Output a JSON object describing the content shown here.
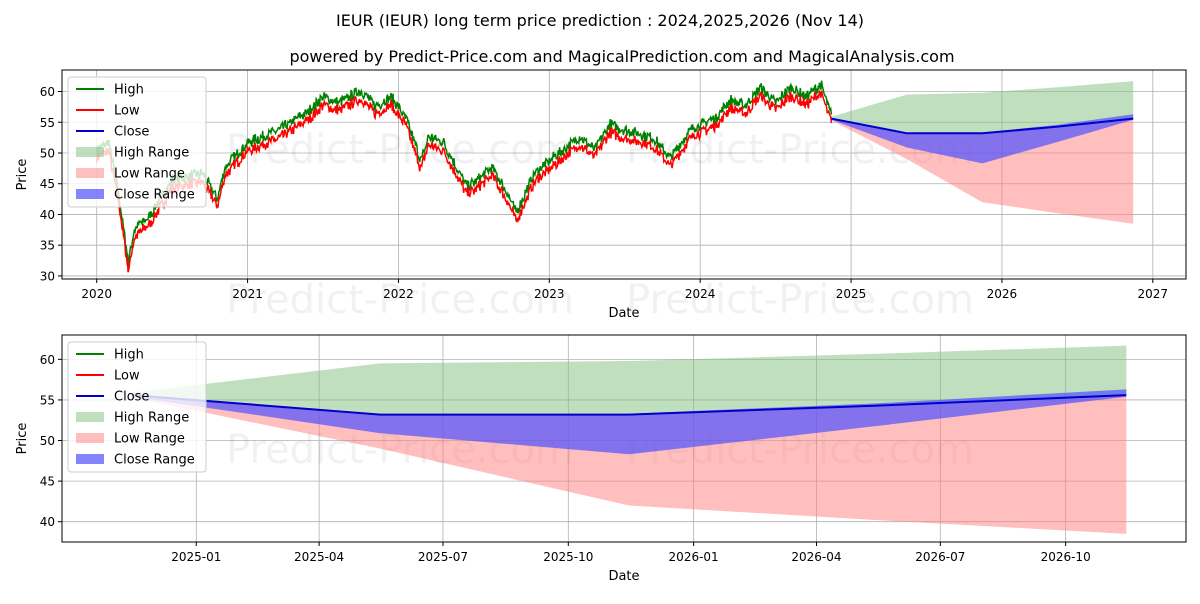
{
  "header": {
    "title": "IEUR (IEUR) long term price prediction : 2024,2025,2026 (Nov 14)",
    "subtitle": "powered by Predict-Price.com and MagicalPrediction.com and MagicalAnalysis.com"
  },
  "watermark": "Predict-Price.com",
  "colors": {
    "high": "#008000",
    "low": "#ff0000",
    "close": "#0000cc",
    "high_range": "#7fbf7f",
    "low_range": "#ff8080",
    "close_range": "#5050ff"
  },
  "chart_data": [
    {
      "type": "line",
      "title": "",
      "xlabel": "Date",
      "ylabel": "Price",
      "xlim": [
        2019.77,
        2027.22
      ],
      "ylim": [
        29.5,
        63.5
      ],
      "xticks": [
        2020,
        2021,
        2022,
        2023,
        2024,
        2025,
        2026,
        2027
      ],
      "xtick_labels": [
        "2020",
        "2021",
        "2022",
        "2023",
        "2024",
        "2025",
        "2026",
        "2027"
      ],
      "yticks": [
        30,
        35,
        40,
        45,
        50,
        55,
        60
      ],
      "grid": true,
      "legend": "upper-left",
      "legend_entries": [
        "High",
        "Low",
        "Close",
        "High Range",
        "Low Range",
        "Close Range"
      ],
      "history": {
        "x": [
          2020.0,
          2020.08,
          2020.15,
          2020.19,
          2020.21,
          2020.25,
          2020.35,
          2020.5,
          2020.7,
          2020.8,
          2020.85,
          2021.0,
          2021.2,
          2021.4,
          2021.5,
          2021.6,
          2021.75,
          2021.85,
          2021.95,
          2022.05,
          2022.15,
          2022.2,
          2022.3,
          2022.45,
          2022.5,
          2022.62,
          2022.72,
          2022.78,
          2022.9,
          2023.05,
          2023.2,
          2023.3,
          2023.4,
          2023.5,
          2023.6,
          2023.7,
          2023.8,
          2023.95,
          2024.1,
          2024.2,
          2024.3,
          2024.4,
          2024.5,
          2024.6,
          2024.7,
          2024.8,
          2024.87
        ],
        "close": [
          50,
          51,
          42,
          35,
          31.5,
          37,
          39,
          45,
          46,
          42,
          47,
          51,
          53,
          56,
          58.5,
          57.5,
          59.5,
          57,
          58.5,
          55,
          48,
          52,
          51,
          44,
          44.5,
          47,
          43,
          39.5,
          46,
          49,
          52,
          50,
          54,
          53,
          52.5,
          51.5,
          48.5,
          53.5,
          55,
          58,
          57,
          60,
          57.5,
          60,
          58.5,
          60.5,
          55.5
        ]
      },
      "forecast": {
        "x": [
          2024.87,
          2025.37,
          2025.87,
          2026.37,
          2026.87
        ],
        "close": [
          55.6,
          53.2,
          53.2,
          54.3,
          55.6
        ],
        "high_upper": [
          55.9,
          59.5,
          59.8,
          60.7,
          61.7
        ],
        "close_upper": [
          55.7,
          53.2,
          53.3,
          54.6,
          56.3
        ],
        "close_lower": [
          55.4,
          50.9,
          48.3,
          51.8,
          55.4
        ],
        "low_lower": [
          55.3,
          49.0,
          42.0,
          40.2,
          38.5
        ]
      }
    },
    {
      "type": "line",
      "title": "",
      "xlabel": "Date",
      "ylabel": "Price",
      "xlim": [
        2024.73,
        2026.99
      ],
      "ylim": [
        37.5,
        63.0
      ],
      "xticks": [
        2025.0,
        2025.247,
        2025.496,
        2025.748,
        2026.0,
        2026.247,
        2026.496,
        2026.748
      ],
      "xtick_labels": [
        "2025-01",
        "2025-04",
        "2025-07",
        "2025-10",
        "2026-01",
        "2026-04",
        "2026-07",
        "2026-10"
      ],
      "yticks": [
        40,
        45,
        50,
        55,
        60
      ],
      "grid": true,
      "legend": "upper-left",
      "legend_entries": [
        "High",
        "Low",
        "Close",
        "High Range",
        "Low Range",
        "Close Range"
      ],
      "forecast": {
        "x": [
          2024.87,
          2025.37,
          2025.87,
          2026.37,
          2026.87
        ],
        "close": [
          55.6,
          53.2,
          53.2,
          54.3,
          55.6
        ],
        "high_upper": [
          55.9,
          59.5,
          59.8,
          60.7,
          61.7
        ],
        "close_upper": [
          55.7,
          53.2,
          53.3,
          54.6,
          56.3
        ],
        "close_lower": [
          55.4,
          50.9,
          48.3,
          51.8,
          55.4
        ],
        "low_lower": [
          55.3,
          49.0,
          42.0,
          40.2,
          38.5
        ]
      }
    }
  ]
}
